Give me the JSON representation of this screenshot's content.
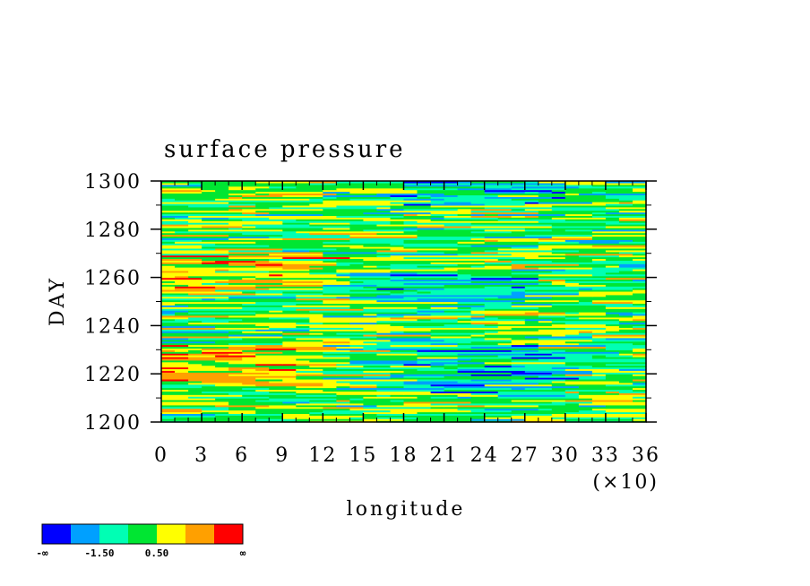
{
  "chart_data": {
    "type": "heatmap",
    "title": "surface pressure",
    "xlabel": "longitude",
    "ylabel": "DAY",
    "x_multiplier_label": "(×10)",
    "xlim": [
      0,
      36
    ],
    "ylim": [
      1200,
      1300
    ],
    "xticks": [
      "0",
      "3",
      "6",
      "9",
      "12",
      "15",
      "18",
      "21",
      "24",
      "27",
      "30",
      "33",
      "36"
    ],
    "yticks": [
      "1200",
      "1220",
      "1240",
      "1260",
      "1280",
      "1300"
    ],
    "colorbar": {
      "colors": [
        "#0000ff",
        "#00a0ff",
        "#00ffb4",
        "#00e632",
        "#ffff00",
        "#ffa000",
        "#ff0000"
      ],
      "labels": [
        "-∞",
        "-1.50",
        "0.50",
        "∞"
      ]
    },
    "field_regions": [
      {
        "lon_range": [
          0,
          12
        ],
        "day_range": [
          1215,
          1232
        ],
        "level": "high"
      },
      {
        "lon_range": [
          0,
          12
        ],
        "day_range": [
          1255,
          1270
        ],
        "level": "high"
      },
      {
        "lon_range": [
          18,
          30
        ],
        "day_range": [
          1212,
          1232
        ],
        "level": "low"
      },
      {
        "lon_range": [
          15,
          28
        ],
        "day_range": [
          1250,
          1262
        ],
        "level": "low"
      },
      {
        "lon_range": [
          18,
          30
        ],
        "day_range": [
          1290,
          1300
        ],
        "level": "low"
      }
    ]
  }
}
